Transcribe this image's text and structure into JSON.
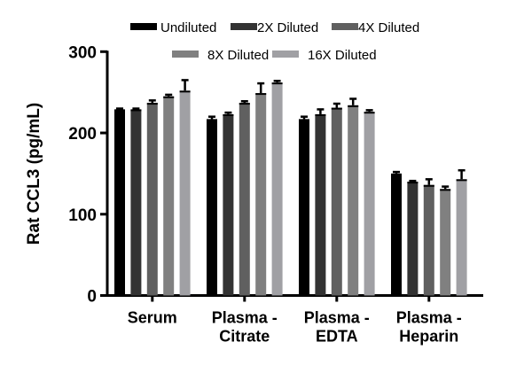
{
  "chart_data": {
    "type": "bar",
    "ylabel": "Rat CCL3 (pg/mL)",
    "ylim": [
      0,
      300
    ],
    "yticks": [
      0,
      100,
      200,
      300
    ],
    "categories": [
      [
        "Serum"
      ],
      [
        "Plasma -",
        "Citrate"
      ],
      [
        "Plasma -",
        "EDTA"
      ],
      [
        "Plasma -",
        "Heparin"
      ]
    ],
    "legend_position": "top",
    "series": [
      {
        "name": "Undiluted",
        "color": "#000000",
        "values": [
          229,
          217,
          217,
          150
        ],
        "errors": [
          1,
          3,
          3,
          2
        ]
      },
      {
        "name": "2X Diluted",
        "color": "#333333",
        "values": [
          229,
          223,
          223,
          140
        ],
        "errors": [
          1,
          2,
          6,
          1
        ]
      },
      {
        "name": "4X Diluted",
        "color": "#606060",
        "values": [
          237,
          237,
          231,
          136
        ],
        "errors": [
          3,
          2,
          5,
          7
        ]
      },
      {
        "name": "8X Diluted",
        "color": "#808080",
        "values": [
          245,
          249,
          234,
          131
        ],
        "errors": [
          2,
          12,
          8,
          3
        ]
      },
      {
        "name": "16X Diluted",
        "color": "#a0a0a4",
        "values": [
          252,
          262,
          226,
          143
        ],
        "errors": [
          13,
          2,
          2,
          11
        ]
      }
    ]
  }
}
